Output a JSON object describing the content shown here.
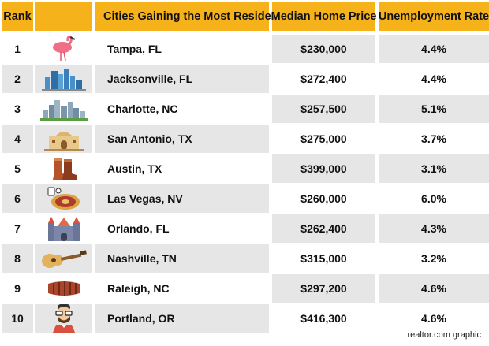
{
  "chart_data": {
    "type": "table",
    "columns": [
      "Rank",
      "",
      "Cities Gaining the Most Residents",
      "Median Home Price",
      "Unemployment Rate"
    ],
    "rows": [
      {
        "rank": "1",
        "icon": "flamingo-icon",
        "city": "Tampa, FL",
        "price": "$230,000",
        "unemployment": "4.4%"
      },
      {
        "rank": "2",
        "icon": "skyline-icon",
        "city": "Jacksonville, FL",
        "price": "$272,400",
        "unemployment": "4.4%"
      },
      {
        "rank": "3",
        "icon": "city-skyline-icon",
        "city": "Charlotte, NC",
        "price": "$257,500",
        "unemployment": "5.1%"
      },
      {
        "rank": "4",
        "icon": "alamo-icon",
        "city": "San Antonio, TX",
        "price": "$275,000",
        "unemployment": "3.7%"
      },
      {
        "rank": "5",
        "icon": "cowboy-boots-icon",
        "city": "Austin, TX",
        "price": "$399,000",
        "unemployment": "3.1%"
      },
      {
        "rank": "6",
        "icon": "roulette-icon",
        "city": "Las Vegas, NV",
        "price": "$260,000",
        "unemployment": "6.0%"
      },
      {
        "rank": "7",
        "icon": "castle-icon",
        "city": "Orlando, FL",
        "price": "$262,400",
        "unemployment": "4.3%"
      },
      {
        "rank": "8",
        "icon": "guitar-icon",
        "city": "Nashville, TN",
        "price": "$315,000",
        "unemployment": "3.2%"
      },
      {
        "rank": "9",
        "icon": "ribs-icon",
        "city": "Raleigh, NC",
        "price": "$297,200",
        "unemployment": "4.6%"
      },
      {
        "rank": "10",
        "icon": "hipster-man-icon",
        "city": "Portland, OR",
        "price": "$416,300",
        "unemployment": "4.6%"
      }
    ]
  },
  "colors": {
    "header": "#f6b21b",
    "shade": "#e6e6e6"
  },
  "credit": "realtor.com graphic"
}
